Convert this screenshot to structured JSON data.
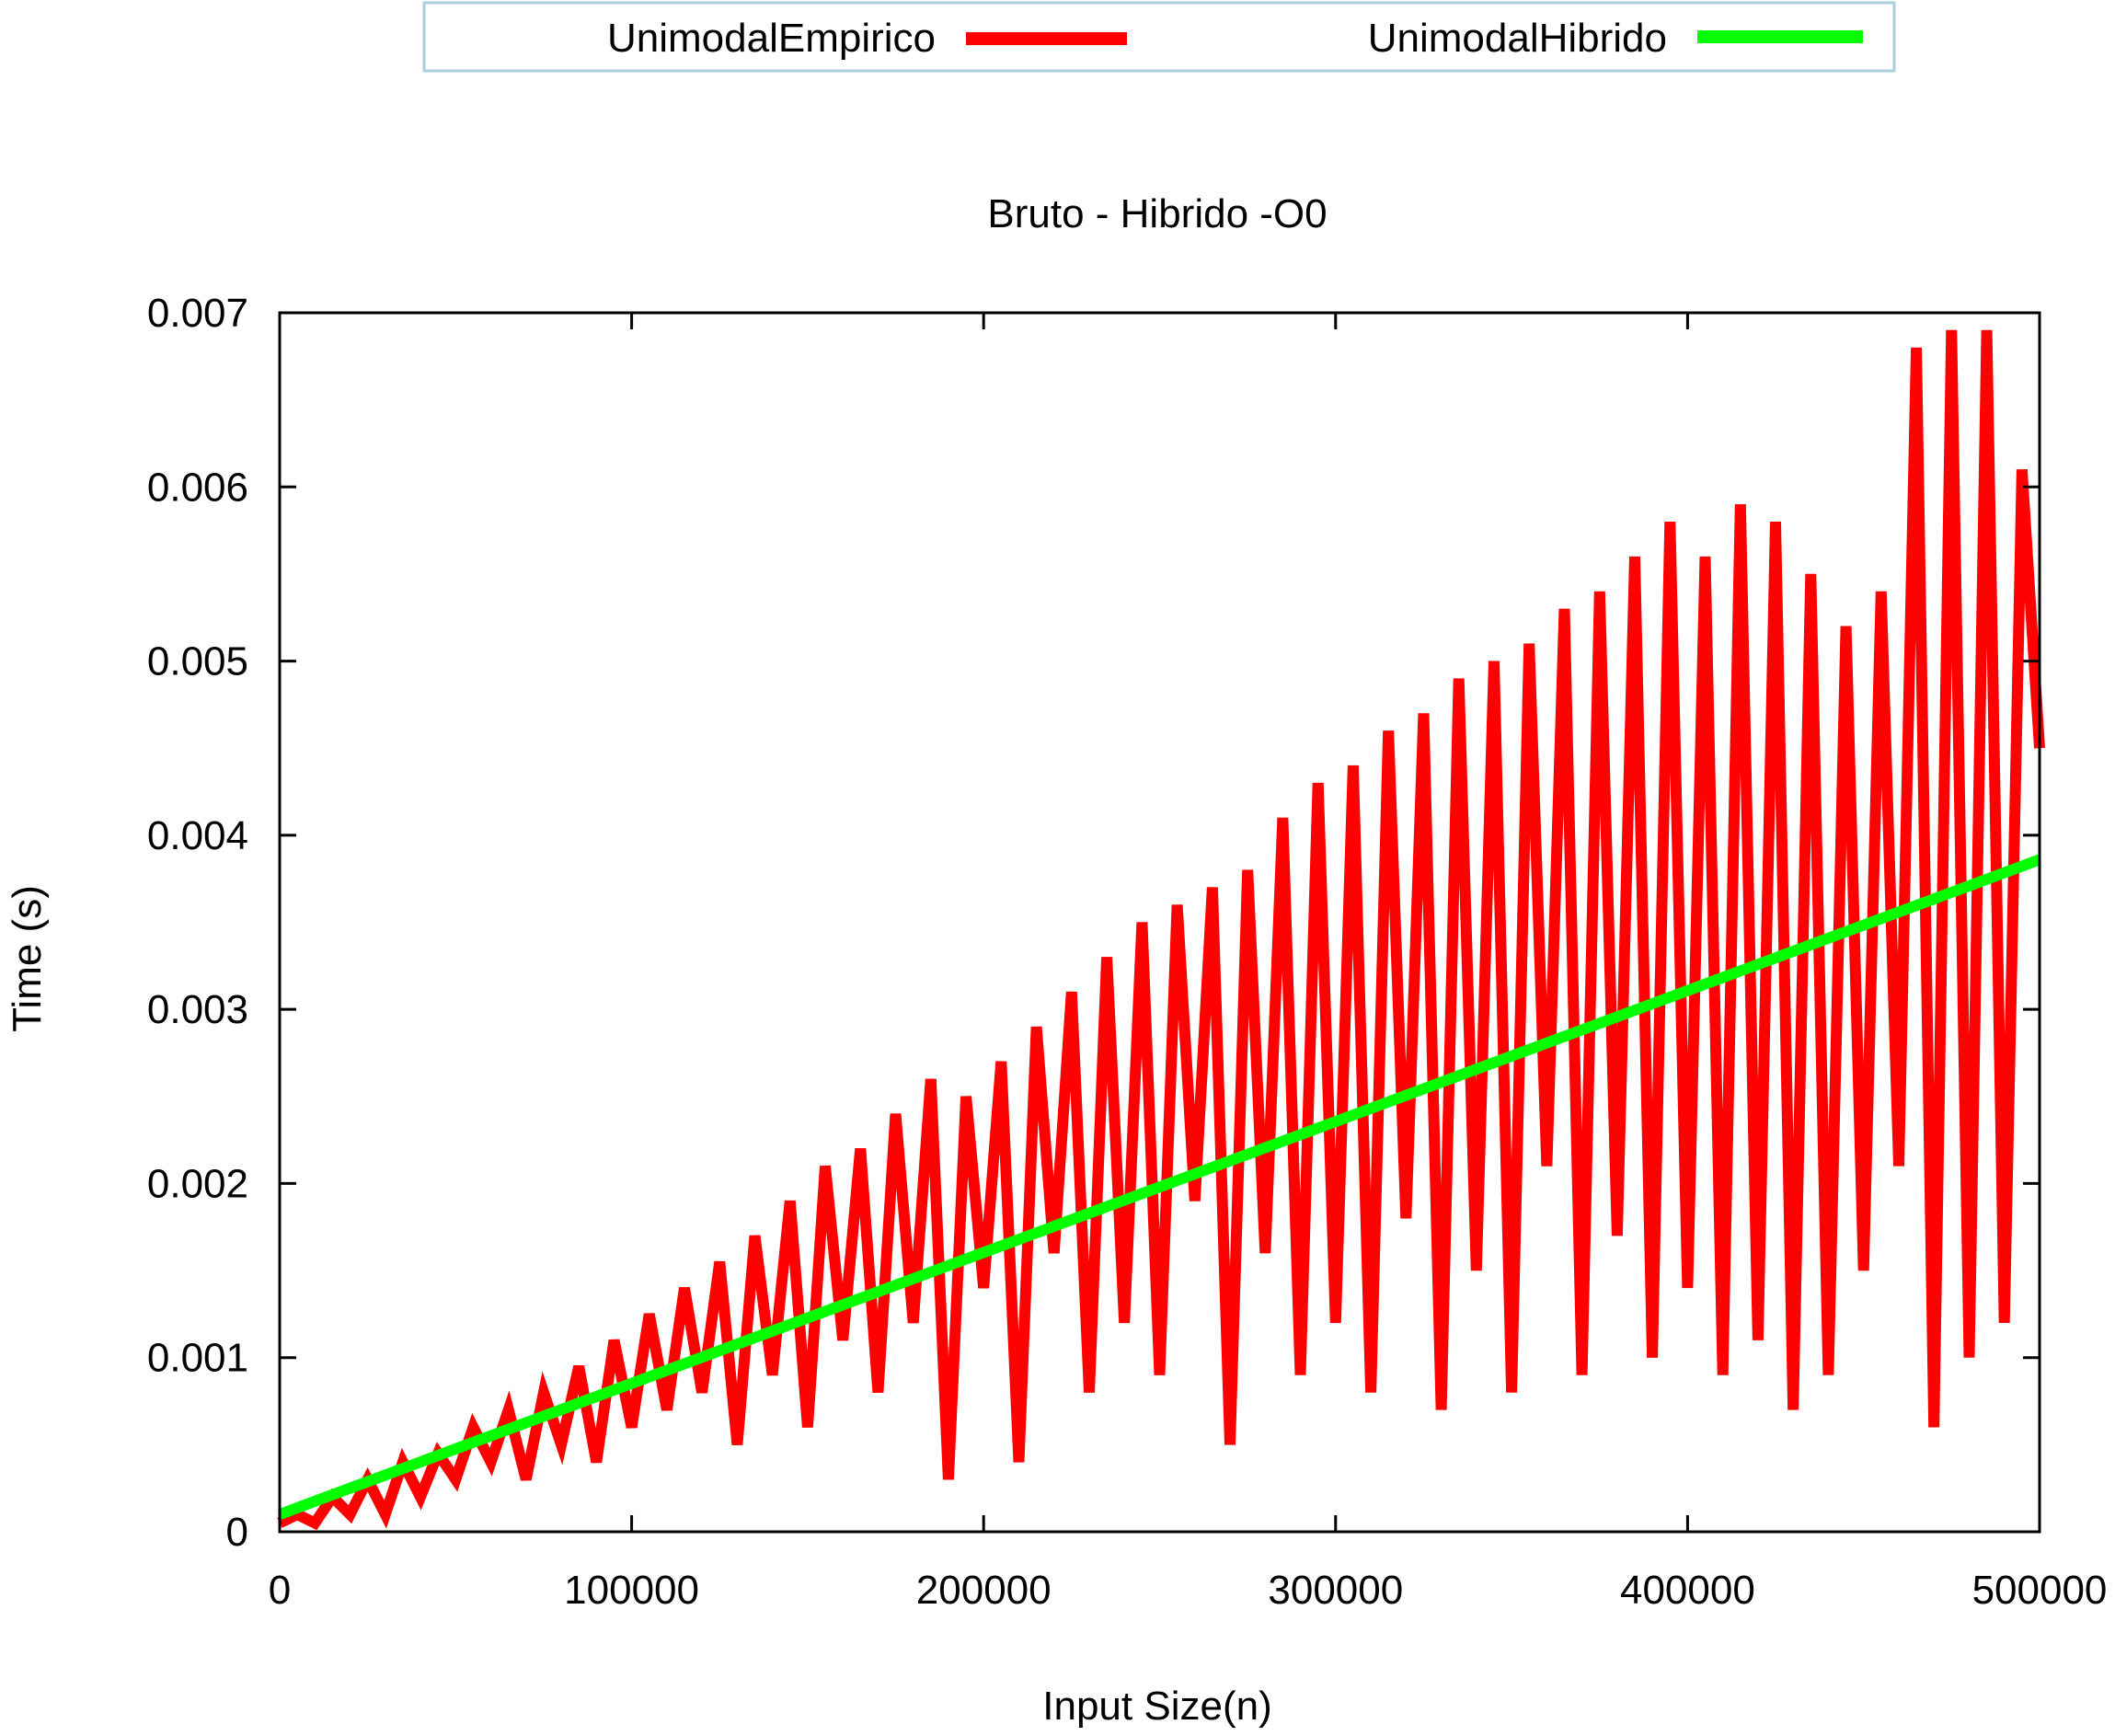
{
  "chart_data": {
    "type": "line",
    "title": "Bruto - Hibrido -O0",
    "xlabel": "Input Size(n)",
    "ylabel": "Time (s)",
    "xlim": [
      0,
      500000
    ],
    "ylim": [
      0,
      0.007
    ],
    "x_ticks": [
      0,
      100000,
      200000,
      300000,
      400000,
      500000
    ],
    "x_tick_labels": [
      "0",
      "100000",
      "200000",
      "300000",
      "400000",
      "500000"
    ],
    "y_ticks": [
      0,
      0.001,
      0.002,
      0.003,
      0.004,
      0.005,
      0.006,
      0.007
    ],
    "y_tick_labels": [
      "0",
      "0.001",
      "0.002",
      "0.003",
      "0.004",
      "0.005",
      "0.006",
      "0.007"
    ],
    "grid": false,
    "legend": {
      "placement": "top-center",
      "border_color": "#a8d0dc"
    },
    "series": [
      {
        "name": "UnimodalEmpirico",
        "color": "#ff0000",
        "points": [
          [
            0,
            5e-05
          ],
          [
            5000,
            0.0001
          ],
          [
            10000,
            5e-05
          ],
          [
            15000,
            0.0002
          ],
          [
            20000,
            0.0001
          ],
          [
            25000,
            0.0003
          ],
          [
            30000,
            0.0001
          ],
          [
            35000,
            0.0004
          ],
          [
            40000,
            0.0002
          ],
          [
            45000,
            0.00045
          ],
          [
            50000,
            0.0003
          ],
          [
            55000,
            0.0006
          ],
          [
            60000,
            0.0004
          ],
          [
            65000,
            0.0007
          ],
          [
            70000,
            0.0003
          ],
          [
            75000,
            0.0008
          ],
          [
            80000,
            0.0005
          ],
          [
            85000,
            0.00095
          ],
          [
            90000,
            0.0004
          ],
          [
            95000,
            0.0011
          ],
          [
            100000,
            0.0006
          ],
          [
            105000,
            0.00125
          ],
          [
            110000,
            0.0007
          ],
          [
            115000,
            0.0014
          ],
          [
            120000,
            0.0008
          ],
          [
            125000,
            0.00155
          ],
          [
            130000,
            0.0005
          ],
          [
            135000,
            0.0017
          ],
          [
            140000,
            0.0009
          ],
          [
            145000,
            0.0019
          ],
          [
            150000,
            0.0006
          ],
          [
            155000,
            0.0021
          ],
          [
            160000,
            0.0011
          ],
          [
            165000,
            0.0022
          ],
          [
            170000,
            0.0008
          ],
          [
            175000,
            0.0024
          ],
          [
            180000,
            0.0012
          ],
          [
            185000,
            0.0026
          ],
          [
            190000,
            0.0003
          ],
          [
            195000,
            0.0025
          ],
          [
            200000,
            0.0014
          ],
          [
            205000,
            0.0027
          ],
          [
            210000,
            0.0004
          ],
          [
            215000,
            0.0029
          ],
          [
            220000,
            0.0016
          ],
          [
            225000,
            0.0031
          ],
          [
            230000,
            0.0008
          ],
          [
            235000,
            0.0033
          ],
          [
            240000,
            0.0012
          ],
          [
            245000,
            0.0035
          ],
          [
            250000,
            0.0009
          ],
          [
            255000,
            0.0036
          ],
          [
            260000,
            0.0019
          ],
          [
            265000,
            0.0037
          ],
          [
            270000,
            0.0005
          ],
          [
            275000,
            0.0038
          ],
          [
            280000,
            0.0016
          ],
          [
            285000,
            0.0041
          ],
          [
            290000,
            0.0009
          ],
          [
            295000,
            0.0043
          ],
          [
            300000,
            0.0012
          ],
          [
            305000,
            0.0044
          ],
          [
            310000,
            0.0008
          ],
          [
            315000,
            0.0046
          ],
          [
            320000,
            0.0018
          ],
          [
            325000,
            0.0047
          ],
          [
            330000,
            0.0007
          ],
          [
            335000,
            0.0049
          ],
          [
            340000,
            0.0015
          ],
          [
            345000,
            0.005
          ],
          [
            350000,
            0.0008
          ],
          [
            355000,
            0.0051
          ],
          [
            360000,
            0.0021
          ],
          [
            365000,
            0.0053
          ],
          [
            370000,
            0.0009
          ],
          [
            375000,
            0.0054
          ],
          [
            380000,
            0.0017
          ],
          [
            385000,
            0.0056
          ],
          [
            390000,
            0.001
          ],
          [
            395000,
            0.0058
          ],
          [
            400000,
            0.0014
          ],
          [
            405000,
            0.0056
          ],
          [
            410000,
            0.0009
          ],
          [
            415000,
            0.0059
          ],
          [
            420000,
            0.0011
          ],
          [
            425000,
            0.0058
          ],
          [
            430000,
            0.0007
          ],
          [
            435000,
            0.0055
          ],
          [
            440000,
            0.0009
          ],
          [
            445000,
            0.0052
          ],
          [
            450000,
            0.0015
          ],
          [
            455000,
            0.0054
          ],
          [
            460000,
            0.0021
          ],
          [
            465000,
            0.0068
          ],
          [
            470000,
            0.0006
          ],
          [
            475000,
            0.0069
          ],
          [
            480000,
            0.001
          ],
          [
            485000,
            0.0069
          ],
          [
            490000,
            0.0012
          ],
          [
            495000,
            0.0061
          ],
          [
            500000,
            0.0045
          ]
        ]
      },
      {
        "name": "UnimodalHibrido",
        "color": "#00ff00",
        "points": [
          [
            0,
            0.0001
          ],
          [
            500000,
            0.00386
          ]
        ]
      }
    ]
  }
}
